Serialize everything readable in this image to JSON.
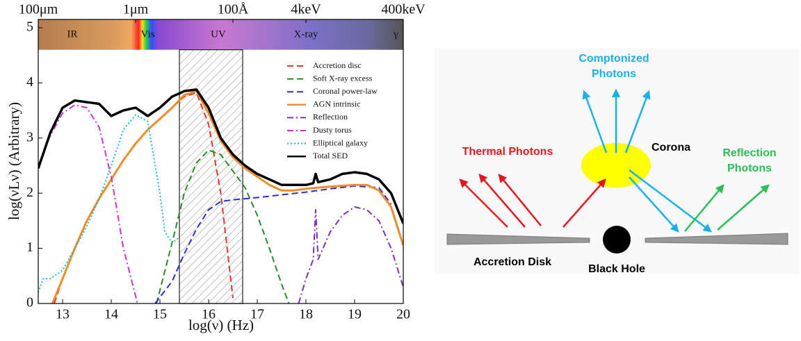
{
  "chart_data": {
    "type": "line",
    "xlabel": "log(ν) (Hz)",
    "ylabel": "log(νLν) (Arbitrary)",
    "xlim": [
      12.5,
      20
    ],
    "ylim": [
      0,
      5.15
    ],
    "xticks": [
      13,
      14,
      15,
      16,
      17,
      18,
      19,
      20
    ],
    "yticks": [
      0,
      1,
      2,
      3,
      4,
      5
    ],
    "top_xticks": [
      {
        "value": 12.5,
        "label": "100μm"
      },
      {
        "value": 14.5,
        "label": "1μm"
      },
      {
        "value": 16.5,
        "label": "100Å"
      },
      {
        "value": 18.0,
        "label": "4keV"
      },
      {
        "value": 20,
        "label": "400keV"
      }
    ],
    "bands": [
      {
        "label": "IR",
        "x": 13.2
      },
      {
        "label": "Vis",
        "x": 14.75
      },
      {
        "label": "UV",
        "x": 16.2
      },
      {
        "label": "X-ray",
        "x": 18.0
      },
      {
        "label": "γ",
        "x": 19.85
      }
    ],
    "band_bottom": 4.6,
    "highlight": {
      "xlim": [
        15.4,
        16.7
      ],
      "ylim": [
        0,
        4.6
      ]
    },
    "legend": "upper right",
    "series": [
      {
        "name": "Accretion disc",
        "color": "#e8332a",
        "style": "dashed",
        "width": 2,
        "x": [
          12.83,
          13.0,
          13.25,
          13.5,
          13.75,
          14.0,
          14.25,
          14.5,
          14.75,
          15.0,
          15.25,
          15.5,
          15.75,
          16.0,
          16.25,
          16.5
        ],
        "values": [
          0,
          0.45,
          1.0,
          1.5,
          1.9,
          2.25,
          2.6,
          2.9,
          3.15,
          3.35,
          3.55,
          3.75,
          3.82,
          3.25,
          2.0,
          0.1
        ]
      },
      {
        "name": "Soft X-ray excess",
        "color": "#2a8a2a",
        "style": "dashed",
        "width": 2,
        "x": [
          14.93,
          15.25,
          15.5,
          15.75,
          16.0,
          16.25,
          16.5,
          16.75,
          17.0,
          17.25,
          17.5,
          17.65
        ],
        "values": [
          0,
          1.1,
          2.0,
          2.55,
          2.78,
          2.7,
          2.4,
          2.1,
          1.6,
          1.0,
          0.35,
          0
        ]
      },
      {
        "name": "Coronal power-law",
        "color": "#2a2ae0",
        "style": "dashed",
        "width": 2,
        "x": [
          14.9,
          15.25,
          15.5,
          15.75,
          16.0,
          16.25,
          16.5,
          17.0,
          17.5,
          18.0,
          18.5,
          19.0,
          19.5,
          19.75
        ],
        "values": [
          0,
          0.4,
          0.9,
          1.35,
          1.7,
          1.85,
          1.88,
          1.92,
          1.97,
          2.02,
          2.08,
          2.13,
          2.1,
          1.8
        ]
      },
      {
        "name": "AGN intrinsic",
        "color": "#f28c28",
        "style": "solid",
        "width": 3,
        "x": [
          12.79,
          13.0,
          13.25,
          13.5,
          13.75,
          14.0,
          14.25,
          14.5,
          14.75,
          15.0,
          15.25,
          15.5,
          15.75,
          16.0,
          16.25,
          16.5,
          16.75,
          17.0,
          17.25,
          17.5,
          17.75,
          18.0,
          18.5,
          19.0,
          19.25,
          19.5,
          19.75,
          20.0
        ],
        "values": [
          0,
          0.45,
          1.0,
          1.5,
          1.9,
          2.25,
          2.6,
          2.9,
          3.15,
          3.35,
          3.55,
          3.78,
          3.85,
          3.45,
          2.95,
          2.65,
          2.45,
          2.3,
          2.15,
          2.05,
          2.05,
          2.08,
          2.12,
          2.15,
          2.15,
          2.05,
          1.75,
          1.05
        ]
      },
      {
        "name": "Reflection",
        "color": "#7b2fbe",
        "style": "dashdot",
        "width": 2,
        "x": [
          17.85,
          18.0,
          18.15,
          18.2,
          18.25,
          18.5,
          18.75,
          19.0,
          19.25,
          19.5,
          19.75,
          20.0
        ],
        "values": [
          0,
          0.45,
          0.8,
          1.7,
          0.8,
          1.3,
          1.6,
          1.75,
          1.7,
          1.5,
          1.0,
          0.3
        ]
      },
      {
        "name": "Dusty torus",
        "color": "#cc33cc",
        "style": "dashdot",
        "width": 2,
        "x": [
          12.5,
          12.75,
          13.0,
          13.25,
          13.5,
          13.75,
          14.0,
          14.25,
          14.54
        ],
        "values": [
          2.5,
          3.05,
          3.45,
          3.6,
          3.55,
          3.2,
          2.3,
          1.0,
          0
        ]
      },
      {
        "name": "Elliptical galaxy",
        "color": "#1ab8c8",
        "style": "dotted",
        "width": 2,
        "x": [
          12.5,
          12.6,
          12.75,
          13.0,
          13.25,
          13.5,
          13.75,
          14.0,
          14.25,
          14.5,
          14.75,
          15.0,
          15.1,
          15.25,
          15.4
        ],
        "values": [
          0.2,
          0.45,
          0.45,
          0.6,
          1.0,
          1.4,
          1.9,
          2.5,
          3.15,
          3.42,
          3.3,
          2.0,
          1.3,
          1.1,
          1.2
        ]
      },
      {
        "name": "Total SED",
        "color": "#000000",
        "style": "solid",
        "width": 3.5,
        "x": [
          12.5,
          12.75,
          13.0,
          13.25,
          13.5,
          13.75,
          14.0,
          14.25,
          14.5,
          14.75,
          15.0,
          15.25,
          15.5,
          15.75,
          16.0,
          16.25,
          16.5,
          16.75,
          17.0,
          17.25,
          17.5,
          17.75,
          18.0,
          18.15,
          18.2,
          18.25,
          18.5,
          18.75,
          19.0,
          19.25,
          19.5,
          19.75,
          20.0
        ],
        "values": [
          2.45,
          3.1,
          3.55,
          3.68,
          3.65,
          3.62,
          3.4,
          3.5,
          3.55,
          3.4,
          3.55,
          3.75,
          3.85,
          3.88,
          3.55,
          3.0,
          2.7,
          2.5,
          2.35,
          2.25,
          2.15,
          2.15,
          2.15,
          2.18,
          2.35,
          2.2,
          2.25,
          2.35,
          2.38,
          2.35,
          2.25,
          2.0,
          1.45
        ]
      }
    ]
  },
  "diagram": {
    "comptonized": [
      "Comptonized",
      "Photons"
    ],
    "thermal": "Thermal Photons",
    "corona": "Corona",
    "reflection": [
      "Reflection",
      "Photons"
    ],
    "disk": "Accretion Disk",
    "black_hole": "Black Hole"
  }
}
